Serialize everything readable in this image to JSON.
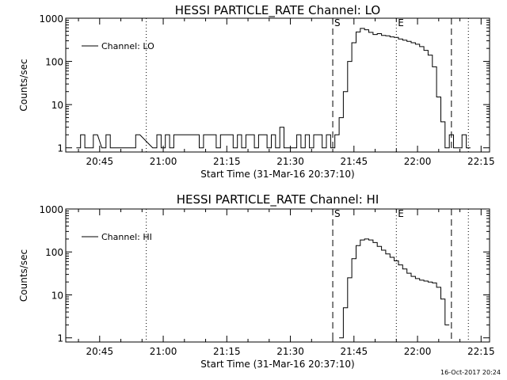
{
  "footer": {
    "timestamp": "16-Oct-2017 20:24"
  },
  "chart_data": [
    {
      "type": "line",
      "title": "HESSI PARTICLE_RATE Channel: LO",
      "xlabel": "Start Time (31-Mar-16 20:37:10)",
      "ylabel": "Counts/sec",
      "yscale": "log",
      "ylim": [
        0.8,
        1000
      ],
      "xlim": [
        "20:37",
        "22:17"
      ],
      "grid": false,
      "legend": {
        "position": "top-left",
        "entries": [
          "Channel: LO"
        ]
      },
      "xticks": [
        "20:45",
        "21:00",
        "21:15",
        "21:30",
        "21:45",
        "22:00",
        "22:15"
      ],
      "yticks": [
        "1",
        "10",
        "100",
        "1000"
      ],
      "markers": [
        {
          "label": "S",
          "time": "21:40",
          "style": "dashed"
        },
        {
          "label": "E",
          "time": "21:55",
          "style": "dotted"
        }
      ],
      "other_lines": [
        {
          "time": "20:56",
          "style": "dotted"
        },
        {
          "time": "22:08",
          "style": "dashed"
        },
        {
          "time": "22:12",
          "style": "dotted"
        }
      ],
      "series": [
        {
          "x": [
            "20:40",
            "20:41",
            "20:42",
            "20:43",
            "20:44",
            "20:46",
            "20:47",
            "20:48",
            "20:52",
            "20:53",
            "20:54",
            "20:58",
            "20:59",
            "21:00",
            "21:01",
            "21:02",
            "21:03",
            "21:04",
            "21:05",
            "21:06",
            "21:07",
            "21:08",
            "21:09",
            "21:10",
            "21:11",
            "21:12",
            "21:13",
            "21:14",
            "21:15",
            "21:16",
            "21:17",
            "21:18",
            "21:19",
            "21:20",
            "21:21",
            "21:22",
            "21:23",
            "21:24",
            "21:25",
            "21:26",
            "21:27",
            "21:28",
            "21:29",
            "21:31",
            "21:32",
            "21:33",
            "21:34",
            "21:35",
            "21:36",
            "21:37",
            "21:38",
            "21:39",
            "21:40",
            "21:41",
            "21:42",
            "21:43",
            "21:44",
            "21:45",
            "21:46",
            "21:47",
            "21:48",
            "21:49",
            "21:50",
            "21:51",
            "21:52",
            "21:53",
            "21:54",
            "21:55",
            "21:56",
            "21:57",
            "21:58",
            "21:59",
            "22:00",
            "22:01",
            "22:02",
            "22:03",
            "22:04",
            "22:05",
            "22:06",
            "22:07",
            "22:08",
            "22:09",
            "22:10",
            "22:11",
            "22:12"
          ],
          "y": [
            1,
            2,
            1,
            1,
            2,
            1,
            2,
            1,
            1,
            1,
            2,
            1,
            2,
            1,
            2,
            1,
            2,
            2,
            2,
            2,
            2,
            2,
            1,
            2,
            2,
            2,
            1,
            2,
            2,
            2,
            1,
            2,
            1,
            2,
            2,
            1,
            2,
            2,
            1,
            2,
            1,
            3,
            1,
            1,
            2,
            1,
            2,
            1,
            2,
            2,
            1,
            2,
            1,
            2,
            5,
            20,
            100,
            270,
            480,
            580,
            540,
            470,
            420,
            440,
            400,
            390,
            370,
            360,
            330,
            310,
            290,
            270,
            250,
            220,
            180,
            140,
            75,
            15,
            4,
            1,
            2,
            1,
            1,
            2,
            1
          ]
        }
      ]
    },
    {
      "type": "line",
      "title": "HESSI PARTICLE_RATE Channel: HI",
      "xlabel": "Start Time (31-Mar-16 20:37:10)",
      "ylabel": "Counts/sec",
      "yscale": "log",
      "ylim": [
        0.8,
        1000
      ],
      "xlim": [
        "20:37",
        "22:17"
      ],
      "grid": false,
      "legend": {
        "position": "top-left",
        "entries": [
          "Channel: HI"
        ]
      },
      "xticks": [
        "20:45",
        "21:00",
        "21:15",
        "21:30",
        "21:45",
        "22:00",
        "22:15"
      ],
      "yticks": [
        "1",
        "10",
        "100",
        "1000"
      ],
      "markers": [
        {
          "label": "S",
          "time": "21:40",
          "style": "dashed"
        },
        {
          "label": "E",
          "time": "21:55",
          "style": "dotted"
        }
      ],
      "other_lines": [
        {
          "time": "20:56",
          "style": "dotted"
        },
        {
          "time": "22:08",
          "style": "dashed"
        },
        {
          "time": "22:12",
          "style": "dotted"
        }
      ],
      "series": [
        {
          "x": [
            "21:42",
            "21:43",
            "21:44",
            "21:45",
            "21:46",
            "21:47",
            "21:48",
            "21:49",
            "21:50",
            "21:51",
            "21:52",
            "21:53",
            "21:54",
            "21:55",
            "21:56",
            "21:57",
            "21:58",
            "21:59",
            "22:00",
            "22:01",
            "22:02",
            "22:03",
            "22:04",
            "22:05",
            "22:06",
            "22:07"
          ],
          "y": [
            1,
            5,
            25,
            70,
            140,
            190,
            200,
            190,
            165,
            135,
            110,
            90,
            75,
            62,
            50,
            40,
            32,
            27,
            24,
            22,
            21,
            20,
            19,
            15,
            8,
            2
          ]
        }
      ]
    }
  ]
}
